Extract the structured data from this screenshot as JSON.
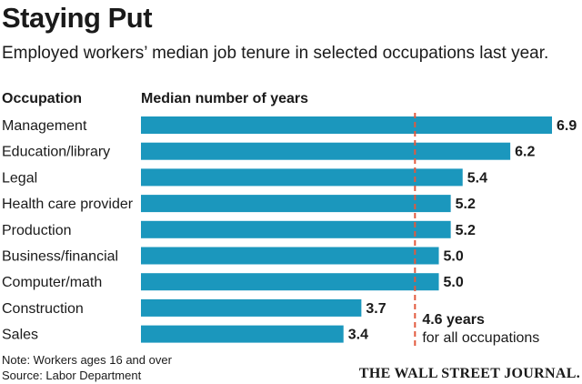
{
  "header": {
    "title": "Staying Put",
    "subtitle": "Employed workers’ median job tenure in selected occupations last year."
  },
  "columns": {
    "occupation": "Occupation",
    "value": "Median number of years"
  },
  "chart_data": {
    "type": "bar",
    "orientation": "horizontal",
    "title": "Staying Put",
    "subtitle": "Employed workers’ median job tenure in selected occupations last year.",
    "xlabel": "Median number of years",
    "ylabel": "Occupation",
    "categories": [
      "Management",
      "Education/library",
      "Legal",
      "Health care provider",
      "Production",
      "Business/financial",
      "Computer/math",
      "Construction",
      "Sales"
    ],
    "values": [
      6.9,
      6.2,
      5.4,
      5.2,
      5.2,
      5.0,
      5.0,
      3.7,
      3.4
    ],
    "value_labels": [
      "6.9",
      "6.2",
      "5.4",
      "5.2",
      "5.2",
      "5.0",
      "5.0",
      "3.7",
      "3.4"
    ],
    "xlim": [
      0,
      6.9
    ],
    "grid": false,
    "bar_color": "#1b97bd",
    "reference_line": {
      "value": 4.6,
      "color": "#e2593d",
      "style": "dashed",
      "label_value": "4.6 years",
      "label_text": "for all occupations"
    }
  },
  "footer": {
    "note": "Note: Workers ages 16 and over",
    "source": "Source: Labor Department",
    "brand": "THE WALL STREET JOURNAL."
  }
}
